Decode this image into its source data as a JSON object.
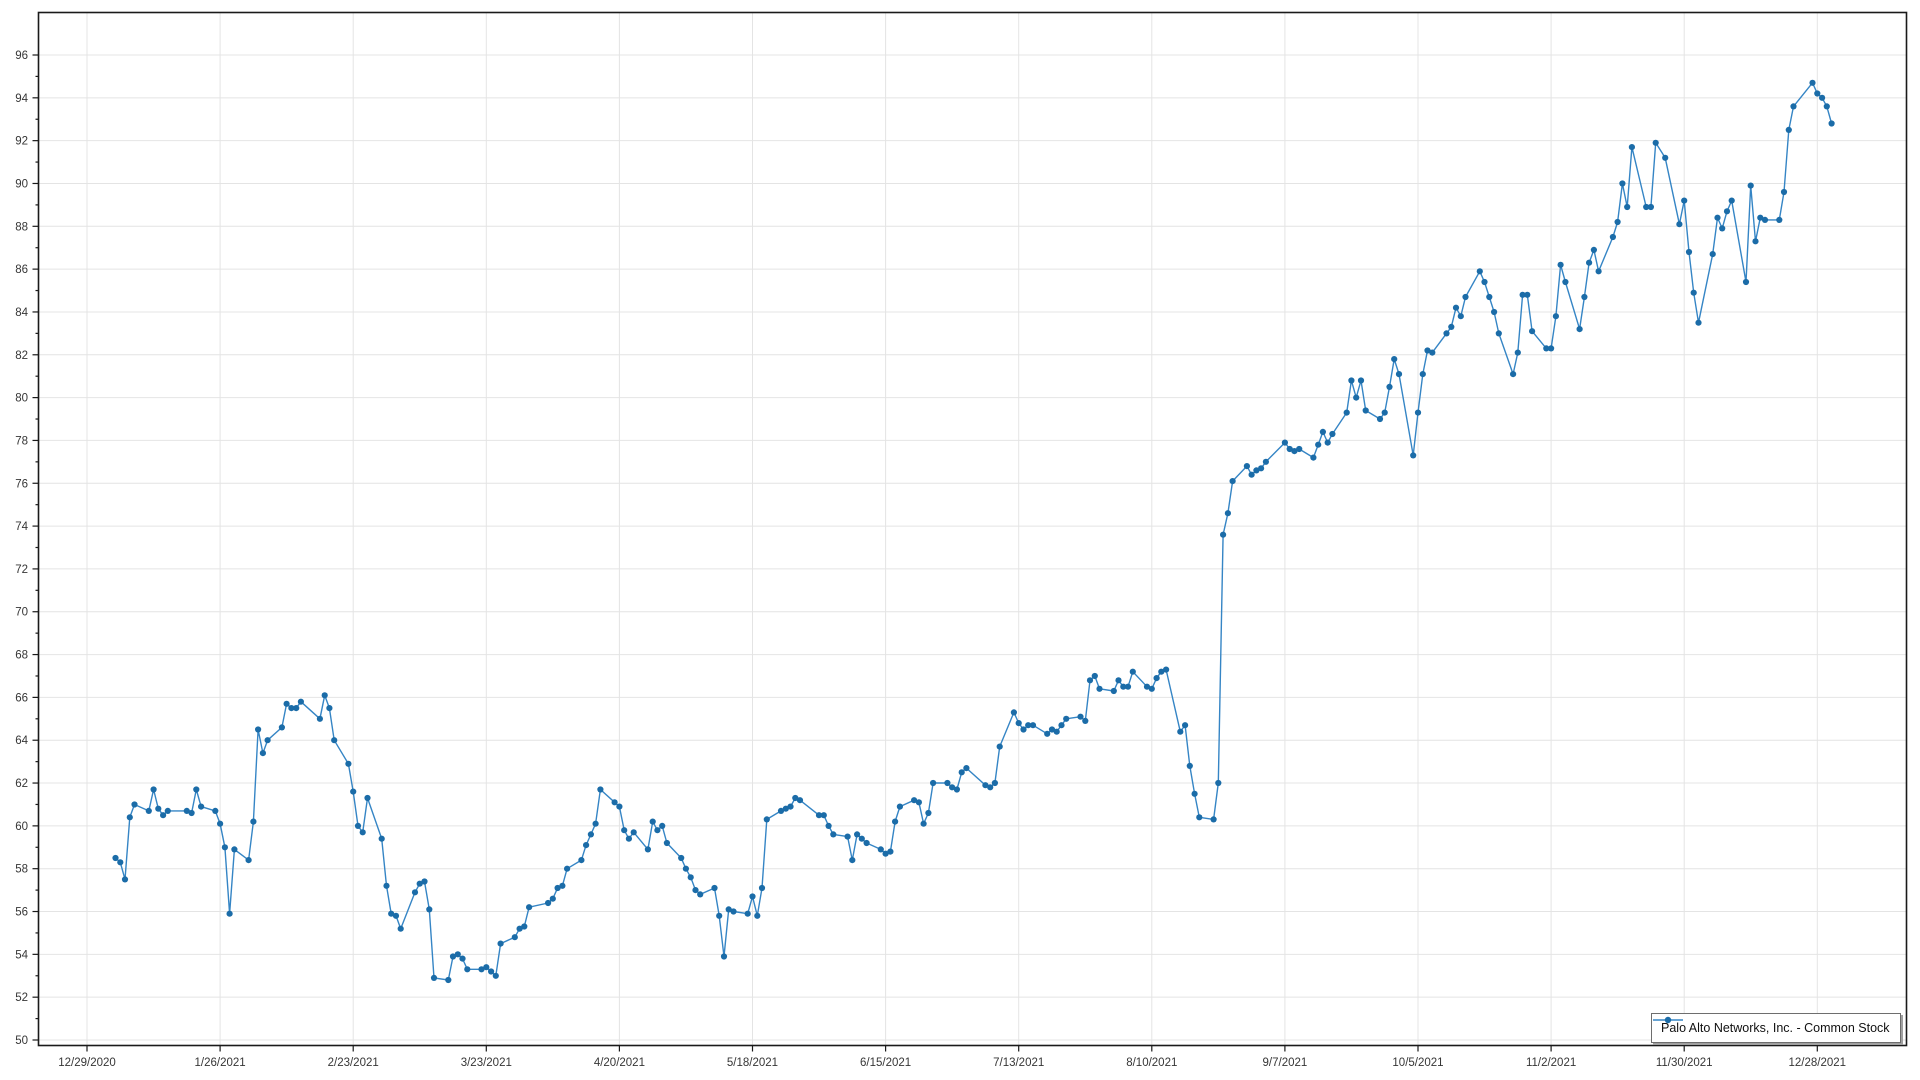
{
  "window": {
    "background": "#ffffff"
  },
  "legend": {
    "label": "Palo Alto Networks, Inc. - Common Stock"
  },
  "chart_data": {
    "type": "line",
    "title": "",
    "xlabel": "",
    "ylabel": "",
    "grid": true,
    "legend_position": "bottom-right",
    "line_color": "#3585c5",
    "marker_color": "#1b6ca8",
    "grid_color": "#e4e4e4",
    "frame_color": "#1a1a1a",
    "tick_label_color": "#363636",
    "y_axis": {
      "min": 50,
      "max": 96,
      "tick_step": 2,
      "minor_tick_step": 1
    },
    "x_axis": {
      "tick_labels": [
        "12/29/2020",
        "1/26/2021",
        "2/23/2021",
        "3/23/2021",
        "4/20/2021",
        "5/18/2021",
        "6/15/2021",
        "7/13/2021",
        "8/10/2021",
        "9/7/2021",
        "10/5/2021",
        "11/2/2021",
        "11/30/2021",
        "12/28/2021"
      ]
    },
    "series": [
      {
        "name": "Palo Alto Networks, Inc. - Common Stock",
        "dates": [
          "1/4/2021",
          "1/5/2021",
          "1/6/2021",
          "1/7/2021",
          "1/8/2021",
          "1/11/2021",
          "1/12/2021",
          "1/13/2021",
          "1/14/2021",
          "1/15/2021",
          "1/19/2021",
          "1/20/2021",
          "1/21/2021",
          "1/22/2021",
          "1/25/2021",
          "1/26/2021",
          "1/27/2021",
          "1/28/2021",
          "1/29/2021",
          "2/1/2021",
          "2/2/2021",
          "2/3/2021",
          "2/4/2021",
          "2/5/2021",
          "2/8/2021",
          "2/9/2021",
          "2/10/2021",
          "2/11/2021",
          "2/12/2021",
          "2/16/2021",
          "2/17/2021",
          "2/18/2021",
          "2/19/2021",
          "2/22/2021",
          "2/23/2021",
          "2/24/2021",
          "2/25/2021",
          "2/26/2021",
          "3/1/2021",
          "3/2/2021",
          "3/3/2021",
          "3/4/2021",
          "3/5/2021",
          "3/8/2021",
          "3/9/2021",
          "3/10/2021",
          "3/11/2021",
          "3/12/2021",
          "3/15/2021",
          "3/16/2021",
          "3/17/2021",
          "3/18/2021",
          "3/19/2021",
          "3/22/2021",
          "3/23/2021",
          "3/24/2021",
          "3/25/2021",
          "3/26/2021",
          "3/29/2021",
          "3/30/2021",
          "3/31/2021",
          "4/1/2021",
          "4/5/2021",
          "4/6/2021",
          "4/7/2021",
          "4/8/2021",
          "4/9/2021",
          "4/12/2021",
          "4/13/2021",
          "4/14/2021",
          "4/15/2021",
          "4/16/2021",
          "4/19/2021",
          "4/20/2021",
          "4/21/2021",
          "4/22/2021",
          "4/23/2021",
          "4/26/2021",
          "4/27/2021",
          "4/28/2021",
          "4/29/2021",
          "4/30/2021",
          "5/3/2021",
          "5/4/2021",
          "5/5/2021",
          "5/6/2021",
          "5/7/2021",
          "5/10/2021",
          "5/11/2021",
          "5/12/2021",
          "5/13/2021",
          "5/14/2021",
          "5/17/2021",
          "5/18/2021",
          "5/19/2021",
          "5/20/2021",
          "5/21/2021",
          "5/24/2021",
          "5/25/2021",
          "5/26/2021",
          "5/27/2021",
          "5/28/2021",
          "6/1/2021",
          "6/2/2021",
          "6/3/2021",
          "6/4/2021",
          "6/7/2021",
          "6/8/2021",
          "6/9/2021",
          "6/10/2021",
          "6/11/2021",
          "6/14/2021",
          "6/15/2021",
          "6/16/2021",
          "6/17/2021",
          "6/18/2021",
          "6/21/2021",
          "6/22/2021",
          "6/23/2021",
          "6/24/2021",
          "6/25/2021",
          "6/28/2021",
          "6/29/2021",
          "6/30/2021",
          "7/1/2021",
          "7/2/2021",
          "7/6/2021",
          "7/7/2021",
          "7/8/2021",
          "7/9/2021",
          "7/12/2021",
          "7/13/2021",
          "7/14/2021",
          "7/15/2021",
          "7/16/2021",
          "7/19/2021",
          "7/20/2021",
          "7/21/2021",
          "7/22/2021",
          "7/23/2021",
          "7/26/2021",
          "7/27/2021",
          "7/28/2021",
          "7/29/2021",
          "7/30/2021",
          "8/2/2021",
          "8/3/2021",
          "8/4/2021",
          "8/5/2021",
          "8/6/2021",
          "8/9/2021",
          "8/10/2021",
          "8/11/2021",
          "8/12/2021",
          "8/13/2021",
          "8/16/2021",
          "8/17/2021",
          "8/18/2021",
          "8/19/2021",
          "8/20/2021",
          "8/23/2021",
          "8/24/2021",
          "8/25/2021",
          "8/26/2021",
          "8/27/2021",
          "8/30/2021",
          "8/31/2021",
          "9/1/2021",
          "9/2/2021",
          "9/3/2021",
          "9/7/2021",
          "9/8/2021",
          "9/9/2021",
          "9/10/2021",
          "9/13/2021",
          "9/14/2021",
          "9/15/2021",
          "9/16/2021",
          "9/17/2021",
          "9/20/2021",
          "9/21/2021",
          "9/22/2021",
          "9/23/2021",
          "9/24/2021",
          "9/27/2021",
          "9/28/2021",
          "9/29/2021",
          "9/30/2021",
          "10/1/2021",
          "10/4/2021",
          "10/5/2021",
          "10/6/2021",
          "10/7/2021",
          "10/8/2021",
          "10/11/2021",
          "10/12/2021",
          "10/13/2021",
          "10/14/2021",
          "10/15/2021",
          "10/18/2021",
          "10/19/2021",
          "10/20/2021",
          "10/21/2021",
          "10/22/2021",
          "10/25/2021",
          "10/26/2021",
          "10/27/2021",
          "10/28/2021",
          "10/29/2021",
          "11/1/2021",
          "11/2/2021",
          "11/3/2021",
          "11/4/2021",
          "11/5/2021",
          "11/8/2021",
          "11/9/2021",
          "11/10/2021",
          "11/11/2021",
          "11/12/2021",
          "11/15/2021",
          "11/16/2021",
          "11/17/2021",
          "11/18/2021",
          "11/19/2021",
          "11/22/2021",
          "11/23/2021",
          "11/24/2021",
          "11/26/2021",
          "11/29/2021",
          "11/30/2021",
          "12/1/2021",
          "12/2/2021",
          "12/3/2021",
          "12/6/2021",
          "12/7/2021",
          "12/8/2021",
          "12/9/2021",
          "12/10/2021",
          "12/13/2021",
          "12/14/2021",
          "12/15/2021",
          "12/16/2021",
          "12/17/2021",
          "12/20/2021",
          "12/21/2021",
          "12/22/2021",
          "12/23/2021",
          "12/27/2021",
          "12/28/2021",
          "12/29/2021",
          "12/30/2021",
          "12/31/2021"
        ],
        "values": [
          58.5,
          58.3,
          57.5,
          60.4,
          61.0,
          60.7,
          61.7,
          60.8,
          60.5,
          60.7,
          60.7,
          60.6,
          61.7,
          60.9,
          60.7,
          60.1,
          59.0,
          55.9,
          58.9,
          58.4,
          60.2,
          64.5,
          63.4,
          64.0,
          64.6,
          65.7,
          65.5,
          65.5,
          65.8,
          65.0,
          66.1,
          65.5,
          64.0,
          62.9,
          61.6,
          60.0,
          59.7,
          61.3,
          59.4,
          57.2,
          55.9,
          55.8,
          55.2,
          56.9,
          57.3,
          57.4,
          56.1,
          52.9,
          52.8,
          53.9,
          54.0,
          53.8,
          53.3,
          53.3,
          53.4,
          53.2,
          53.0,
          54.5,
          54.8,
          55.2,
          55.3,
          56.2,
          56.4,
          56.6,
          57.1,
          57.2,
          58.0,
          58.4,
          59.1,
          59.6,
          60.1,
          61.7,
          61.1,
          60.9,
          59.8,
          59.4,
          59.7,
          58.9,
          60.2,
          59.8,
          60.0,
          59.2,
          58.5,
          58.0,
          57.6,
          57.0,
          56.8,
          57.1,
          55.8,
          53.9,
          56.1,
          56.0,
          55.9,
          56.7,
          55.8,
          57.1,
          60.3,
          60.7,
          60.8,
          60.9,
          61.3,
          61.2,
          60.5,
          60.5,
          60.0,
          59.6,
          59.5,
          58.4,
          59.6,
          59.4,
          59.2,
          58.9,
          58.7,
          58.8,
          60.2,
          60.9,
          61.2,
          61.1,
          60.1,
          60.6,
          62.0,
          62.0,
          61.8,
          61.7,
          62.5,
          62.7,
          61.9,
          61.8,
          62.0,
          63.7,
          65.3,
          64.8,
          64.5,
          64.7,
          64.7,
          64.3,
          64.5,
          64.4,
          64.7,
          65.0,
          65.1,
          64.9,
          66.8,
          67.0,
          66.4,
          66.3,
          66.8,
          66.5,
          66.5,
          67.2,
          66.5,
          66.4,
          66.9,
          67.2,
          67.3,
          64.4,
          64.7,
          62.8,
          61.5,
          60.4,
          60.3,
          62.0,
          73.6,
          74.6,
          76.1,
          76.8,
          76.4,
          76.6,
          76.7,
          77.0,
          77.9,
          77.6,
          77.5,
          77.6,
          77.2,
          77.8,
          78.4,
          77.9,
          78.3,
          79.3,
          80.8,
          80.0,
          80.8,
          79.4,
          79.0,
          79.3,
          80.5,
          81.8,
          81.1,
          77.3,
          79.3,
          81.1,
          82.2,
          82.1,
          83.0,
          83.3,
          84.2,
          83.8,
          84.7,
          85.9,
          85.4,
          84.7,
          84.0,
          83.0,
          81.1,
          82.1,
          84.8,
          84.8,
          83.1,
          82.3,
          82.3,
          83.8,
          86.2,
          85.4,
          83.2,
          84.7,
          86.3,
          86.9,
          85.9,
          87.5,
          88.2,
          90.0,
          88.9,
          91.7,
          88.9,
          88.9,
          91.9,
          91.2,
          88.1,
          89.2,
          86.8,
          84.9,
          83.5,
          86.7,
          88.4,
          87.9,
          88.7,
          89.2,
          85.4,
          89.9,
          87.3,
          88.4,
          88.3,
          88.3,
          89.6,
          92.5,
          93.6,
          94.7,
          94.2,
          94.0,
          93.6,
          92.8
        ]
      }
    ]
  }
}
